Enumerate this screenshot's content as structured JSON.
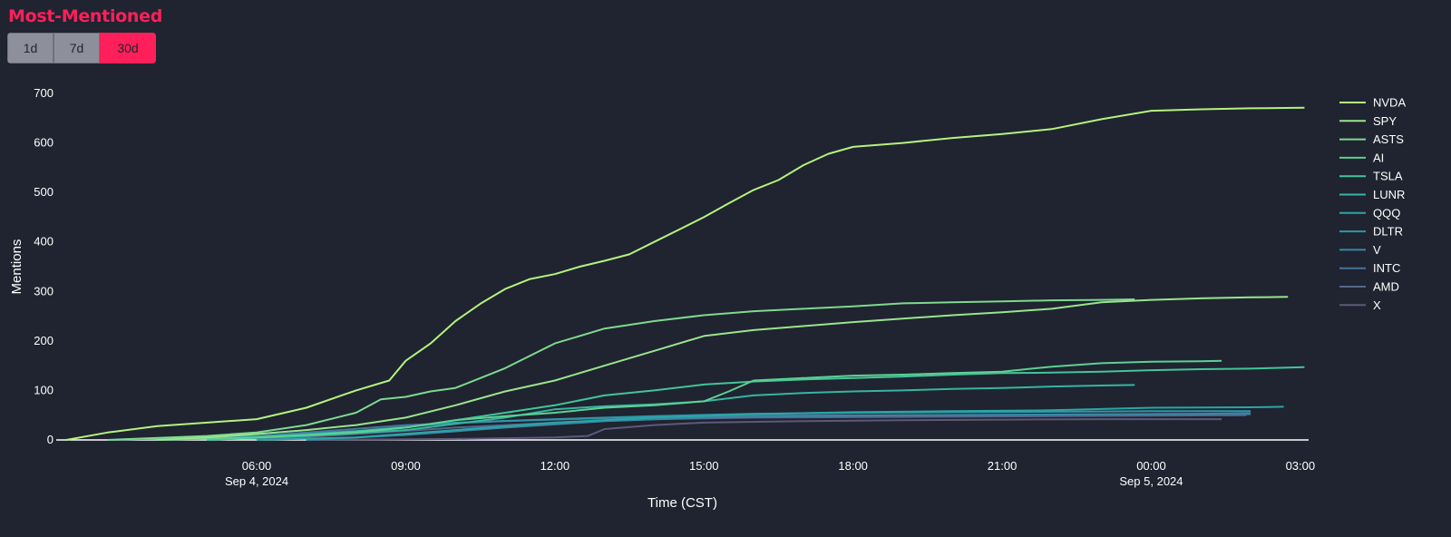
{
  "header": {
    "title": "Most-Mentioned",
    "title_color": "#ff1f5a",
    "ranges": [
      {
        "label": "1d",
        "active": false
      },
      {
        "label": "7d",
        "active": false
      },
      {
        "label": "30d",
        "active": true
      }
    ]
  },
  "chart_data": {
    "type": "line",
    "title": "",
    "xlabel": "Time (CST)",
    "ylabel": "Mentions",
    "ylim": [
      0,
      700
    ],
    "xlim": [
      "2024-09-04 01:58",
      "2024-09-05 03:10"
    ],
    "grid": false,
    "legend_position": "right",
    "x_ticks": [
      {
        "t": "2024-09-04 06:00",
        "label": "06:00",
        "sublabel": "Sep 4, 2024"
      },
      {
        "t": "2024-09-04 09:00",
        "label": "09:00",
        "sublabel": ""
      },
      {
        "t": "2024-09-04 12:00",
        "label": "12:00",
        "sublabel": ""
      },
      {
        "t": "2024-09-04 15:00",
        "label": "15:00",
        "sublabel": ""
      },
      {
        "t": "2024-09-04 18:00",
        "label": "18:00",
        "sublabel": ""
      },
      {
        "t": "2024-09-04 21:00",
        "label": "21:00",
        "sublabel": ""
      },
      {
        "t": "2024-09-05 00:00",
        "label": "00:00",
        "sublabel": "Sep 5, 2024"
      },
      {
        "t": "2024-09-05 03:00",
        "label": "03:00",
        "sublabel": ""
      }
    ],
    "y_ticks": [
      0,
      100,
      200,
      300,
      400,
      500,
      600,
      700
    ],
    "series": [
      {
        "name": "NVDA",
        "color": "#b5f27f",
        "points": [
          [
            "2024-09-04 02:10",
            0
          ],
          [
            "2024-09-04 03:00",
            15
          ],
          [
            "2024-09-04 04:00",
            28
          ],
          [
            "2024-09-04 05:00",
            35
          ],
          [
            "2024-09-04 06:00",
            42
          ],
          [
            "2024-09-04 07:00",
            65
          ],
          [
            "2024-09-04 08:00",
            100
          ],
          [
            "2024-09-04 08:40",
            120
          ],
          [
            "2024-09-04 09:00",
            160
          ],
          [
            "2024-09-04 09:30",
            195
          ],
          [
            "2024-09-04 10:00",
            240
          ],
          [
            "2024-09-04 10:30",
            275
          ],
          [
            "2024-09-04 11:00",
            305
          ],
          [
            "2024-09-04 11:30",
            325
          ],
          [
            "2024-09-04 12:00",
            335
          ],
          [
            "2024-09-04 12:30",
            350
          ],
          [
            "2024-09-04 13:00",
            362
          ],
          [
            "2024-09-04 13:30",
            375
          ],
          [
            "2024-09-04 14:00",
            400
          ],
          [
            "2024-09-04 14:30",
            425
          ],
          [
            "2024-09-04 15:00",
            450
          ],
          [
            "2024-09-04 15:30",
            478
          ],
          [
            "2024-09-04 16:00",
            505
          ],
          [
            "2024-09-04 16:30",
            525
          ],
          [
            "2024-09-04 17:00",
            555
          ],
          [
            "2024-09-04 17:30",
            578
          ],
          [
            "2024-09-04 18:00",
            592
          ],
          [
            "2024-09-04 19:00",
            600
          ],
          [
            "2024-09-04 20:00",
            610
          ],
          [
            "2024-09-04 21:00",
            618
          ],
          [
            "2024-09-04 22:00",
            628
          ],
          [
            "2024-09-04 23:00",
            648
          ],
          [
            "2024-09-05 00:00",
            665
          ],
          [
            "2024-09-05 01:00",
            668
          ],
          [
            "2024-09-05 02:00",
            670
          ],
          [
            "2024-09-05 03:05",
            671
          ]
        ]
      },
      {
        "name": "SPY",
        "color": "#99e48d",
        "points": [
          [
            "2024-09-04 04:00",
            0
          ],
          [
            "2024-09-04 05:00",
            5
          ],
          [
            "2024-09-04 06:00",
            12
          ],
          [
            "2024-09-04 07:00",
            20
          ],
          [
            "2024-09-04 08:00",
            30
          ],
          [
            "2024-09-04 09:00",
            45
          ],
          [
            "2024-09-04 10:00",
            70
          ],
          [
            "2024-09-04 11:00",
            98
          ],
          [
            "2024-09-04 12:00",
            120
          ],
          [
            "2024-09-04 13:00",
            150
          ],
          [
            "2024-09-04 14:00",
            180
          ],
          [
            "2024-09-04 15:00",
            210
          ],
          [
            "2024-09-04 16:00",
            222
          ],
          [
            "2024-09-04 17:00",
            230
          ],
          [
            "2024-09-04 18:00",
            238
          ],
          [
            "2024-09-04 19:00",
            245
          ],
          [
            "2024-09-04 20:00",
            252
          ],
          [
            "2024-09-04 21:00",
            258
          ],
          [
            "2024-09-04 22:00",
            265
          ],
          [
            "2024-09-04 23:00",
            278
          ],
          [
            "2024-09-05 00:00",
            283
          ],
          [
            "2024-09-05 01:00",
            286
          ],
          [
            "2024-09-05 02:00",
            288
          ],
          [
            "2024-09-05 02:45",
            289
          ]
        ]
      },
      {
        "name": "ASTS",
        "color": "#7fd98f",
        "points": [
          [
            "2024-09-04 03:00",
            0
          ],
          [
            "2024-09-04 05:00",
            8
          ],
          [
            "2024-09-04 06:00",
            15
          ],
          [
            "2024-09-04 07:00",
            30
          ],
          [
            "2024-09-04 08:00",
            55
          ],
          [
            "2024-09-04 08:30",
            82
          ],
          [
            "2024-09-04 09:00",
            87
          ],
          [
            "2024-09-04 09:30",
            98
          ],
          [
            "2024-09-04 10:00",
            105
          ],
          [
            "2024-09-04 11:00",
            145
          ],
          [
            "2024-09-04 12:00",
            195
          ],
          [
            "2024-09-04 13:00",
            225
          ],
          [
            "2024-09-04 14:00",
            240
          ],
          [
            "2024-09-04 15:00",
            252
          ],
          [
            "2024-09-04 16:00",
            260
          ],
          [
            "2024-09-04 17:00",
            265
          ],
          [
            "2024-09-04 18:00",
            270
          ],
          [
            "2024-09-04 19:00",
            276
          ],
          [
            "2024-09-04 20:00",
            278
          ],
          [
            "2024-09-04 21:00",
            280
          ],
          [
            "2024-09-04 22:00",
            282
          ],
          [
            "2024-09-04 23:00",
            283
          ],
          [
            "2024-09-04 23:40",
            284
          ]
        ]
      },
      {
        "name": "AI",
        "color": "#5ed093",
        "points": [
          [
            "2024-09-04 04:00",
            0
          ],
          [
            "2024-09-04 06:00",
            5
          ],
          [
            "2024-09-04 08:00",
            15
          ],
          [
            "2024-09-04 09:00",
            25
          ],
          [
            "2024-09-04 10:00",
            40
          ],
          [
            "2024-09-04 11:00",
            48
          ],
          [
            "2024-09-04 12:00",
            55
          ],
          [
            "2024-09-04 13:00",
            65
          ],
          [
            "2024-09-04 14:00",
            70
          ],
          [
            "2024-09-04 15:00",
            78
          ],
          [
            "2024-09-04 15:30",
            98
          ],
          [
            "2024-09-04 16:00",
            120
          ],
          [
            "2024-09-04 17:00",
            125
          ],
          [
            "2024-09-04 18:00",
            130
          ],
          [
            "2024-09-04 19:00",
            132
          ],
          [
            "2024-09-04 20:00",
            135
          ],
          [
            "2024-09-04 21:00",
            138
          ],
          [
            "2024-09-04 22:00",
            148
          ],
          [
            "2024-09-04 23:00",
            155
          ],
          [
            "2024-09-05 00:00",
            158
          ],
          [
            "2024-09-05 01:00",
            159
          ],
          [
            "2024-09-05 01:25",
            160
          ]
        ]
      },
      {
        "name": "TSLA",
        "color": "#44c49b",
        "points": [
          [
            "2024-09-04 05:00",
            0
          ],
          [
            "2024-09-04 07:00",
            10
          ],
          [
            "2024-09-04 09:00",
            25
          ],
          [
            "2024-09-04 10:00",
            40
          ],
          [
            "2024-09-04 11:00",
            55
          ],
          [
            "2024-09-04 12:00",
            70
          ],
          [
            "2024-09-04 13:00",
            90
          ],
          [
            "2024-09-04 14:00",
            100
          ],
          [
            "2024-09-04 15:00",
            112
          ],
          [
            "2024-09-04 16:00",
            118
          ],
          [
            "2024-09-04 17:00",
            122
          ],
          [
            "2024-09-04 18:00",
            125
          ],
          [
            "2024-09-04 19:00",
            128
          ],
          [
            "2024-09-04 20:00",
            132
          ],
          [
            "2024-09-04 21:00",
            135
          ],
          [
            "2024-09-04 22:00",
            136
          ],
          [
            "2024-09-04 23:00",
            138
          ],
          [
            "2024-09-05 00:00",
            141
          ],
          [
            "2024-09-05 01:00",
            143
          ],
          [
            "2024-09-05 02:00",
            144
          ],
          [
            "2024-09-05 03:05",
            147
          ]
        ]
      },
      {
        "name": "LUNR",
        "color": "#36b5a0",
        "points": [
          [
            "2024-09-04 05:00",
            0
          ],
          [
            "2024-09-04 07:00",
            8
          ],
          [
            "2024-09-04 09:00",
            20
          ],
          [
            "2024-09-04 11:00",
            45
          ],
          [
            "2024-09-04 12:00",
            62
          ],
          [
            "2024-09-04 13:00",
            68
          ],
          [
            "2024-09-04 14:00",
            72
          ],
          [
            "2024-09-04 15:00",
            78
          ],
          [
            "2024-09-04 16:00",
            90
          ],
          [
            "2024-09-04 17:00",
            95
          ],
          [
            "2024-09-04 18:00",
            98
          ],
          [
            "2024-09-04 19:00",
            100
          ],
          [
            "2024-09-04 20:00",
            103
          ],
          [
            "2024-09-04 21:00",
            105
          ],
          [
            "2024-09-04 22:00",
            108
          ],
          [
            "2024-09-04 23:00",
            110
          ],
          [
            "2024-09-04 23:40",
            111
          ]
        ]
      },
      {
        "name": "QQQ",
        "color": "#2aa6a6",
        "points": [
          [
            "2024-09-04 06:00",
            0
          ],
          [
            "2024-09-04 08:00",
            5
          ],
          [
            "2024-09-04 10:00",
            20
          ],
          [
            "2024-09-04 12:00",
            35
          ],
          [
            "2024-09-04 14:00",
            45
          ],
          [
            "2024-09-04 16:00",
            52
          ],
          [
            "2024-09-04 18:00",
            56
          ],
          [
            "2024-09-04 20:00",
            58
          ],
          [
            "2024-09-04 22:00",
            60
          ],
          [
            "2024-09-05 00:00",
            65
          ],
          [
            "2024-09-05 02:00",
            66
          ],
          [
            "2024-09-05 02:40",
            67
          ]
        ]
      },
      {
        "name": "DLTR",
        "color": "#2f97a8",
        "points": [
          [
            "2024-09-04 03:00",
            0
          ],
          [
            "2024-09-04 06:00",
            8
          ],
          [
            "2024-09-04 08:00",
            18
          ],
          [
            "2024-09-04 10:00",
            35
          ],
          [
            "2024-09-04 12:00",
            42
          ],
          [
            "2024-09-04 14:00",
            48
          ],
          [
            "2024-09-04 16:00",
            53
          ],
          [
            "2024-09-04 18:00",
            55
          ],
          [
            "2024-09-04 20:00",
            56
          ],
          [
            "2024-09-04 22:00",
            57
          ],
          [
            "2024-09-05 00:00",
            58
          ],
          [
            "2024-09-05 02:00",
            58
          ]
        ]
      },
      {
        "name": "V",
        "color": "#3a87a3",
        "points": [
          [
            "2024-09-04 07:00",
            0
          ],
          [
            "2024-09-04 09:00",
            10
          ],
          [
            "2024-09-04 11:00",
            25
          ],
          [
            "2024-09-04 13:00",
            38
          ],
          [
            "2024-09-04 15:00",
            45
          ],
          [
            "2024-09-04 17:00",
            48
          ],
          [
            "2024-09-04 19:00",
            50
          ],
          [
            "2024-09-04 21:00",
            51
          ],
          [
            "2024-09-04 23:00",
            52
          ],
          [
            "2024-09-05 01:00",
            53
          ],
          [
            "2024-09-05 02:00",
            54
          ]
        ]
      },
      {
        "name": "INTC",
        "color": "#45759a",
        "points": [
          [
            "2024-09-04 05:00",
            0
          ],
          [
            "2024-09-04 07:00",
            15
          ],
          [
            "2024-09-04 09:00",
            30
          ],
          [
            "2024-09-04 11:00",
            38
          ],
          [
            "2024-09-04 13:00",
            44
          ],
          [
            "2024-09-04 15:00",
            48
          ],
          [
            "2024-09-04 17:00",
            50
          ],
          [
            "2024-09-04 19:00",
            50
          ],
          [
            "2024-09-04 21:00",
            51
          ],
          [
            "2024-09-04 23:00",
            51
          ],
          [
            "2024-09-05 01:00",
            52
          ],
          [
            "2024-09-05 02:00",
            52
          ]
        ]
      },
      {
        "name": "AMD",
        "color": "#56658c",
        "points": [
          [
            "2024-09-04 06:00",
            0
          ],
          [
            "2024-09-04 08:00",
            12
          ],
          [
            "2024-09-04 10:00",
            25
          ],
          [
            "2024-09-04 12:00",
            35
          ],
          [
            "2024-09-04 14:00",
            42
          ],
          [
            "2024-09-04 16:00",
            45
          ],
          [
            "2024-09-04 18:00",
            46
          ],
          [
            "2024-09-04 20:00",
            47
          ],
          [
            "2024-09-04 22:00",
            48
          ],
          [
            "2024-09-05 00:00",
            49
          ],
          [
            "2024-09-05 01:55",
            50
          ]
        ]
      },
      {
        "name": "X",
        "color": "#5e5879",
        "points": [
          [
            "2024-09-04 07:00",
            0
          ],
          [
            "2024-09-04 10:00",
            2
          ],
          [
            "2024-09-04 12:00",
            5
          ],
          [
            "2024-09-04 12:40",
            8
          ],
          [
            "2024-09-04 13:00",
            22
          ],
          [
            "2024-09-04 14:00",
            30
          ],
          [
            "2024-09-04 15:00",
            35
          ],
          [
            "2024-09-04 17:00",
            38
          ],
          [
            "2024-09-04 19:00",
            40
          ],
          [
            "2024-09-04 21:00",
            41
          ],
          [
            "2024-09-04 23:00",
            42
          ],
          [
            "2024-09-05 01:25",
            42
          ]
        ]
      }
    ]
  }
}
